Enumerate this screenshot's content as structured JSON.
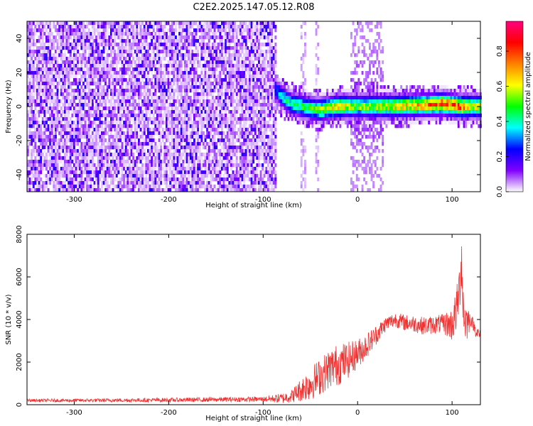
{
  "title": "C2E2.2025.147.05.12.R08",
  "chart_data": [
    {
      "type": "heatmap",
      "xlabel": "Height of straight line (km)",
      "ylabel": "Frequency (Hz)",
      "xlim": [
        -350,
        130
      ],
      "ylim": [
        -50,
        50
      ],
      "xticks": [
        -300,
        -200,
        -100,
        0,
        100
      ],
      "yticks": [
        -40,
        -20,
        0,
        20,
        40
      ],
      "colorbar": {
        "label": "Normalized spectral amplitude",
        "range": [
          0,
          0.97
        ],
        "ticks": [
          0.0,
          0.2,
          0.4,
          0.6,
          0.8
        ],
        "colors": [
          "#ffffff",
          "#8000ff",
          "#0000ff",
          "#00ffff",
          "#00ff00",
          "#ffff00",
          "#ff8000",
          "#ff0000",
          "#ff0080"
        ]
      },
      "features": {
        "noise_band_x": [
          -350,
          -85
        ],
        "noise_amplitude": 0.15,
        "sparse_columns_x": [
          [
            -60,
            -55
          ],
          [
            -45,
            -40
          ]
        ],
        "burst_x": [
          -7,
          27
        ],
        "ridge": [
          {
            "x": -88,
            "y": 10,
            "amp": 0.3
          },
          {
            "x": -80,
            "y": 6,
            "amp": 0.4
          },
          {
            "x": -72,
            "y": 2,
            "amp": 0.45
          },
          {
            "x": -60,
            "y": 0,
            "amp": 0.5
          },
          {
            "x": -40,
            "y": -2,
            "amp": 0.55
          },
          {
            "x": -20,
            "y": 0,
            "amp": 0.7
          },
          {
            "x": 0,
            "y": 0,
            "amp": 0.55
          },
          {
            "x": 30,
            "y": 0,
            "amp": 0.65
          },
          {
            "x": 60,
            "y": 0.5,
            "amp": 0.7
          },
          {
            "x": 90,
            "y": 1.5,
            "amp": 0.85
          },
          {
            "x": 110,
            "y": 0,
            "amp": 0.8
          },
          {
            "x": 130,
            "y": 0,
            "amp": 0.6
          }
        ]
      }
    },
    {
      "type": "line",
      "xlabel": "Height of straight line (km)",
      "ylabel": "SNR (10 * v/v)",
      "xlim": [
        -350,
        130
      ],
      "ylim": [
        0,
        8000
      ],
      "xticks": [
        -300,
        -200,
        -100,
        0,
        100
      ],
      "yticks": [
        0,
        2000,
        4000,
        6000,
        8000
      ],
      "color": "#ee3333",
      "series": [
        {
          "x": [
            -350,
            -300,
            -250,
            -200,
            -150,
            -100,
            -80,
            -70,
            -60,
            -50,
            -40,
            -30,
            -20,
            -10,
            0,
            10,
            20,
            30,
            40,
            50,
            60,
            70,
            80,
            90,
            100,
            105,
            108,
            110,
            112,
            115,
            120,
            125,
            130
          ],
          "y": [
            200,
            200,
            210,
            220,
            240,
            260,
            300,
            400,
            700,
            1000,
            1300,
            1700,
            1900,
            2100,
            2400,
            2800,
            3300,
            3800,
            4000,
            3850,
            3800,
            3700,
            3750,
            3800,
            3750,
            4500,
            5500,
            7000,
            4300,
            3900,
            4000,
            3500,
            3200
          ]
        }
      ],
      "noise": [
        {
          "x": -350,
          "amp": 70
        },
        {
          "x": -100,
          "amp": 120
        },
        {
          "x": -70,
          "amp": 300
        },
        {
          "x": -50,
          "amp": 800
        },
        {
          "x": -20,
          "amp": 1000
        },
        {
          "x": 0,
          "amp": 700
        },
        {
          "x": 30,
          "amp": 350
        },
        {
          "x": 90,
          "amp": 450
        },
        {
          "x": 100,
          "amp": 800
        },
        {
          "x": 112,
          "amp": 1500
        },
        {
          "x": 120,
          "amp": 300
        },
        {
          "x": 130,
          "amp": 300
        }
      ]
    }
  ]
}
